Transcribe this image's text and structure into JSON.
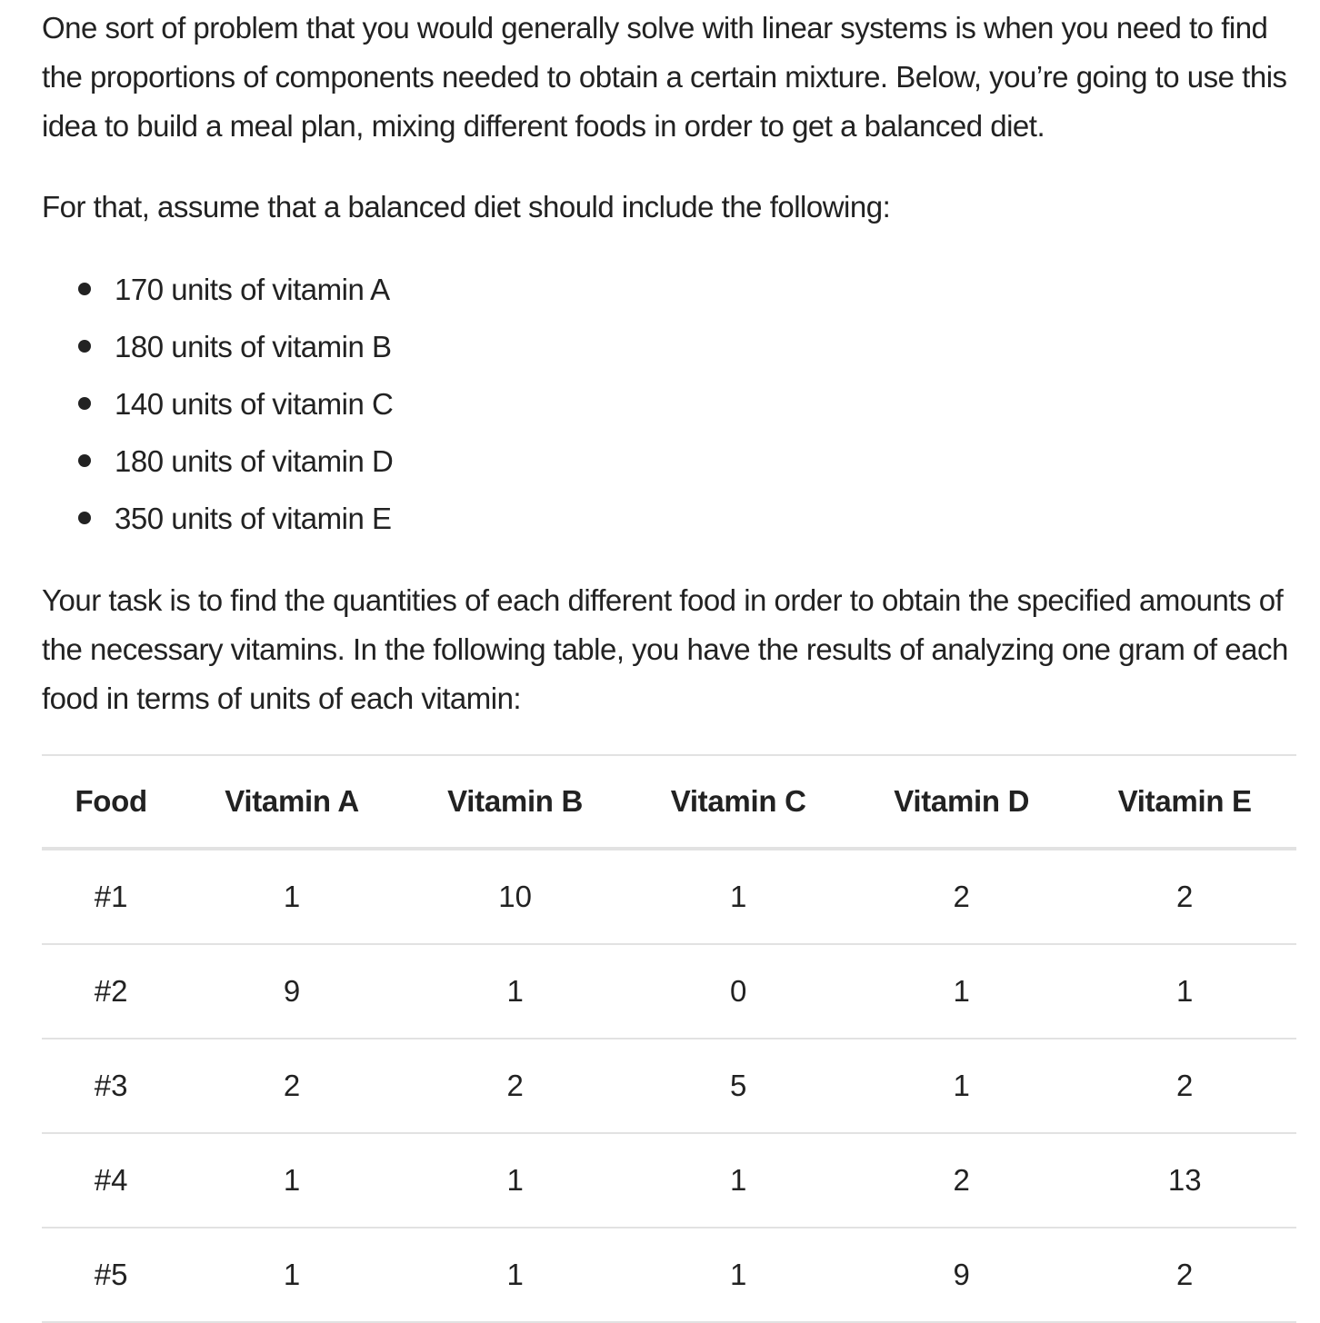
{
  "intro": "One sort of problem that you would generally solve with linear systems is when you need to find the proportions of components needed to obtain a certain mixture. Below, you’re going to use this idea to build a meal plan, mixing different foods in order to get a balanced diet.",
  "assume": "For that, assume that a balanced diet should include the following:",
  "requirements": [
    "170 units of vitamin A",
    "180 units of vitamin B",
    "140 units of vitamin C",
    "180 units of vitamin D",
    "350 units of vitamin E"
  ],
  "task": "Your task is to find the quantities of each different food in order to obtain the specified amounts of the necessary vitamins. In the following table, you have the results of analyzing one gram of each food in terms of units of each vitamin:",
  "table": {
    "headers": [
      "Food",
      "Vitamin A",
      "Vitamin B",
      "Vitamin C",
      "Vitamin D",
      "Vitamin E"
    ],
    "rows": [
      [
        "#1",
        "1",
        "10",
        "1",
        "2",
        "2"
      ],
      [
        "#2",
        "9",
        "1",
        "0",
        "1",
        "1"
      ],
      [
        "#3",
        "2",
        "2",
        "5",
        "1",
        "2"
      ],
      [
        "#4",
        "1",
        "1",
        "1",
        "2",
        "13"
      ],
      [
        "#5",
        "1",
        "1",
        "1",
        "9",
        "2"
      ]
    ]
  }
}
